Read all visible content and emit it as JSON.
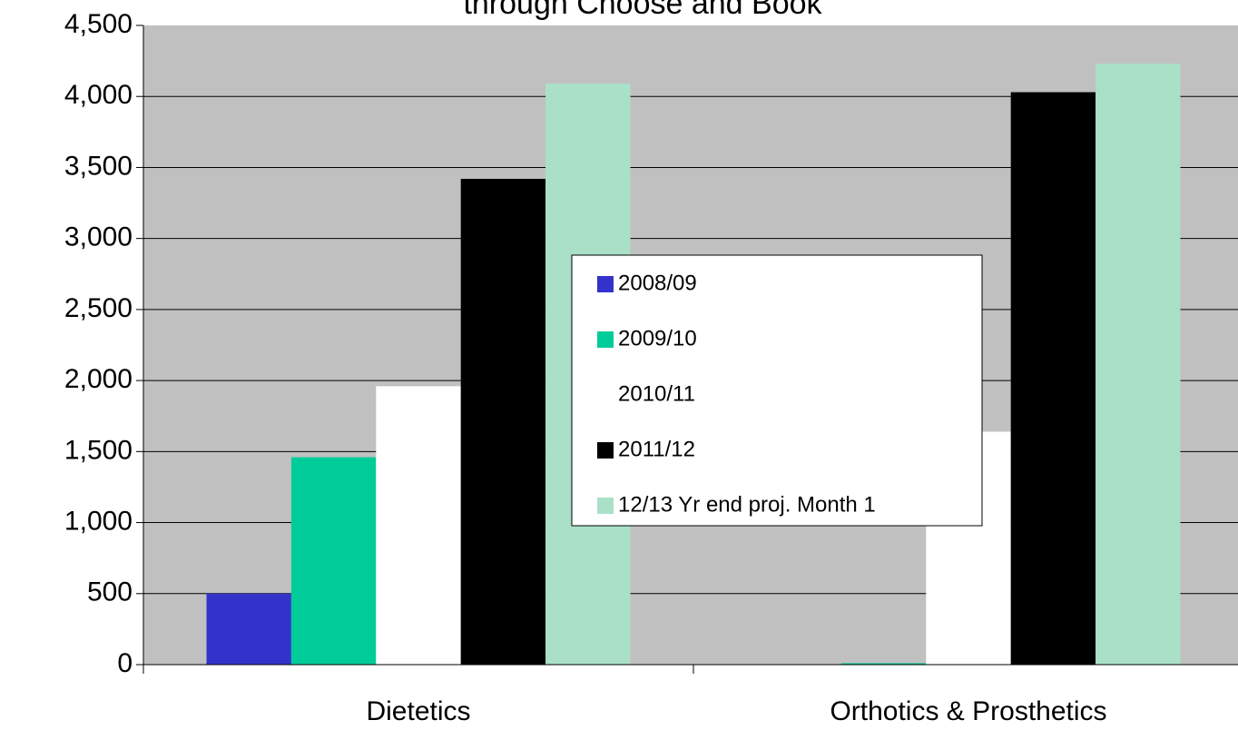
{
  "chart_data": {
    "type": "bar",
    "title": "through Choose and Book",
    "categories": [
      "Dietetics",
      "Orthotics & Prosthetics"
    ],
    "series": [
      {
        "name": "2008/09",
        "color": "#3333cc",
        "values": [
          500,
          0
        ]
      },
      {
        "name": "2009/10",
        "color": "#00cc99",
        "values": [
          1460,
          10
        ]
      },
      {
        "name": "2010/11",
        "color": "#ffffff",
        "values": [
          1960,
          1640
        ]
      },
      {
        "name": "2011/12",
        "color": "#000000",
        "values": [
          3420,
          4030
        ]
      },
      {
        "name": "12/13 Yr end proj. Month 1",
        "color": "#aae0c8",
        "values": [
          4090,
          4230
        ]
      }
    ],
    "ylim": [
      0,
      4500
    ],
    "yticks": [
      0,
      500,
      {
        "value": 1000,
        "label": "1,000"
      },
      {
        "value": 1500,
        "label": "1,500"
      },
      {
        "value": 2000,
        "label": "2,000"
      },
      {
        "value": 2500,
        "label": "2,500"
      },
      {
        "value": 3000,
        "label": "3,000"
      },
      {
        "value": 3500,
        "label": "3,500"
      },
      {
        "value": 4000,
        "label": "4,000"
      },
      {
        "value": 4500,
        "label": "4,500"
      }
    ],
    "grid": true,
    "plot_background": "#c0c0c0"
  }
}
